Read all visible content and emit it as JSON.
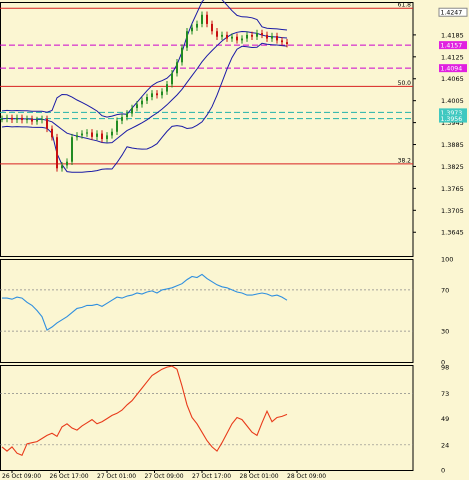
{
  "colors": {
    "background": "#fbf6d2",
    "frame": "#000000",
    "candle": "#228b22",
    "band": "#1a1aa6",
    "fib_line": "#d82020",
    "magenta_line": "#cc00cc",
    "teal_line": "#20b2aa",
    "rsi_line": "#2f8fdf",
    "stoch_line": "#e83a1a",
    "level_dash": "#888888"
  },
  "chart_data": [
    {
      "type": "candlestick",
      "panel": "price",
      "ylim": [
        1.358,
        1.4275
      ],
      "y_ticks": [
        "1.4185",
        "1.4125",
        "1.4065",
        "1.4005",
        "1.3945",
        "1.3885",
        "1.3825",
        "1.3765",
        "1.3705",
        "1.3645"
      ],
      "close": [
        1.3955,
        1.3958,
        1.3953,
        1.3958,
        1.3952,
        1.3955,
        1.3948,
        1.3952,
        1.3955,
        1.3928,
        1.3905,
        1.382,
        1.3828,
        1.3838,
        1.3905,
        1.391,
        1.3915,
        1.3918,
        1.3906,
        1.3915,
        1.39,
        1.391,
        1.392,
        1.395,
        1.396,
        1.397,
        1.3985,
        1.3995,
        1.4005,
        1.4015,
        1.4025,
        1.402,
        1.403,
        1.405,
        1.408,
        1.411,
        1.415,
        1.4195,
        1.4205,
        1.4215,
        1.424,
        1.4215,
        1.4195,
        1.418,
        1.4185,
        1.4175,
        1.418,
        1.417,
        1.4175,
        1.4185,
        1.418,
        1.419,
        1.4185,
        1.4175,
        1.4182,
        1.417,
        1.4165,
        1.416
      ],
      "price_labels": [
        {
          "text": "1.4247",
          "value": 1.4247
        },
        {
          "text": "1.4157",
          "value": 1.4157
        },
        {
          "text": "1.4094",
          "value": 1.4094
        },
        {
          "text": "1.3973",
          "value": 1.3973
        },
        {
          "text": "1.3956",
          "value": 1.3956
        }
      ],
      "fib_levels": [
        {
          "label": "61.8",
          "value": 1.4258
        },
        {
          "label": "50.0",
          "value": 1.4044
        },
        {
          "label": "38.2",
          "value": 1.3832
        }
      ]
    },
    {
      "type": "line",
      "panel": "rsi",
      "ylim": [
        0,
        100
      ],
      "y_ticks": [
        "100",
        "70",
        "30",
        "0"
      ],
      "levels": [
        70,
        30
      ],
      "values": [
        62,
        62,
        61,
        63,
        62,
        58,
        55,
        50,
        44,
        31,
        34,
        38,
        41,
        44,
        48,
        52,
        53,
        55,
        55,
        56,
        54,
        57,
        60,
        63,
        62,
        64,
        65,
        67,
        66,
        68,
        69,
        67,
        70,
        71,
        72,
        74,
        76,
        80,
        83,
        82,
        85,
        81,
        78,
        75,
        73,
        72,
        70,
        68,
        67,
        65,
        65,
        66,
        67,
        66,
        64,
        65,
        63,
        60
      ]
    },
    {
      "type": "line",
      "panel": "stochastic",
      "ylim": [
        0,
        100
      ],
      "y_ticks": [
        "98",
        "73",
        "49",
        "24",
        "0"
      ],
      "levels": [
        73,
        24
      ],
      "values": [
        22,
        18,
        22,
        16,
        14,
        25,
        26,
        27,
        30,
        33,
        35,
        32,
        41,
        44,
        40,
        38,
        42,
        45,
        48,
        44,
        46,
        49,
        52,
        54,
        57,
        62,
        66,
        72,
        78,
        84,
        90,
        93,
        96,
        98,
        99,
        96,
        80,
        62,
        50,
        44,
        36,
        28,
        22,
        18,
        26,
        35,
        44,
        50,
        48,
        42,
        36,
        33,
        45,
        56,
        46,
        50,
        51,
        53
      ]
    }
  ],
  "x_axis": {
    "labels": [
      "26 Oct 09:00",
      "26 Oct 17:00",
      "27 Oct 01:00",
      "27 Oct 09:00",
      "27 Oct 17:00",
      "28 Oct 01:00",
      "28 Oct 09:00"
    ]
  }
}
